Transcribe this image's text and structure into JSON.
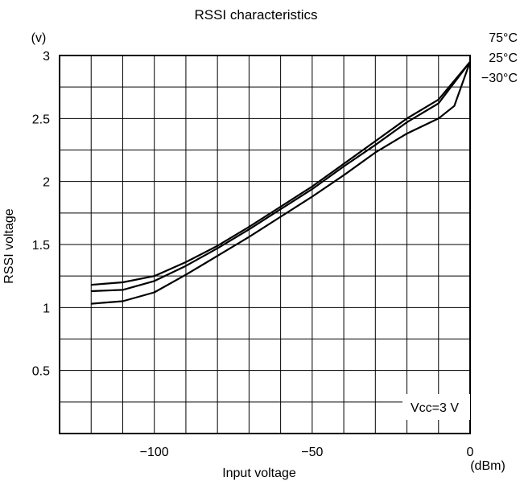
{
  "chart_data": {
    "type": "line",
    "title": "RSSI characteristics",
    "xlabel": "Input voltage",
    "xunit": "(dBm)",
    "ylabel": "RSSI voltage",
    "yunit": "(v)",
    "xlim": [
      -130,
      0
    ],
    "ylim": [
      0,
      3
    ],
    "xticks": [
      -100,
      -50,
      0
    ],
    "xtick_labels": [
      "−100",
      "−50",
      "0"
    ],
    "yticks": [
      0.5,
      1,
      1.5,
      2,
      2.5,
      3
    ],
    "ytick_labels": [
      "0.5",
      "1",
      "1.5",
      "2",
      "2.5",
      "3"
    ],
    "x_grid_step": 10,
    "y_grid_step": 0.25,
    "grid": true,
    "annotation": "Vcc=3 V",
    "series": [
      {
        "name": "75°C",
        "x": [
          -120,
          -110,
          -100,
          -90,
          -80,
          -70,
          -60,
          -50,
          -40,
          -30,
          -20,
          -10,
          0
        ],
        "values": [
          1.18,
          1.2,
          1.25,
          1.36,
          1.49,
          1.64,
          1.8,
          1.96,
          2.14,
          2.32,
          2.5,
          2.65,
          2.95
        ]
      },
      {
        "name": "25°C",
        "x": [
          -120,
          -110,
          -100,
          -90,
          -80,
          -70,
          -60,
          -50,
          -40,
          -30,
          -20,
          -10,
          0
        ],
        "values": [
          1.13,
          1.14,
          1.21,
          1.33,
          1.47,
          1.62,
          1.78,
          1.94,
          2.12,
          2.29,
          2.47,
          2.62,
          2.95
        ]
      },
      {
        "name": "−30°C",
        "x": [
          -120,
          -110,
          -100,
          -90,
          -80,
          -70,
          -60,
          -50,
          -40,
          -30,
          -20,
          -10,
          -5,
          0
        ],
        "values": [
          1.03,
          1.05,
          1.12,
          1.26,
          1.41,
          1.56,
          1.72,
          1.88,
          2.05,
          2.23,
          2.38,
          2.5,
          2.6,
          2.95
        ]
      }
    ]
  }
}
